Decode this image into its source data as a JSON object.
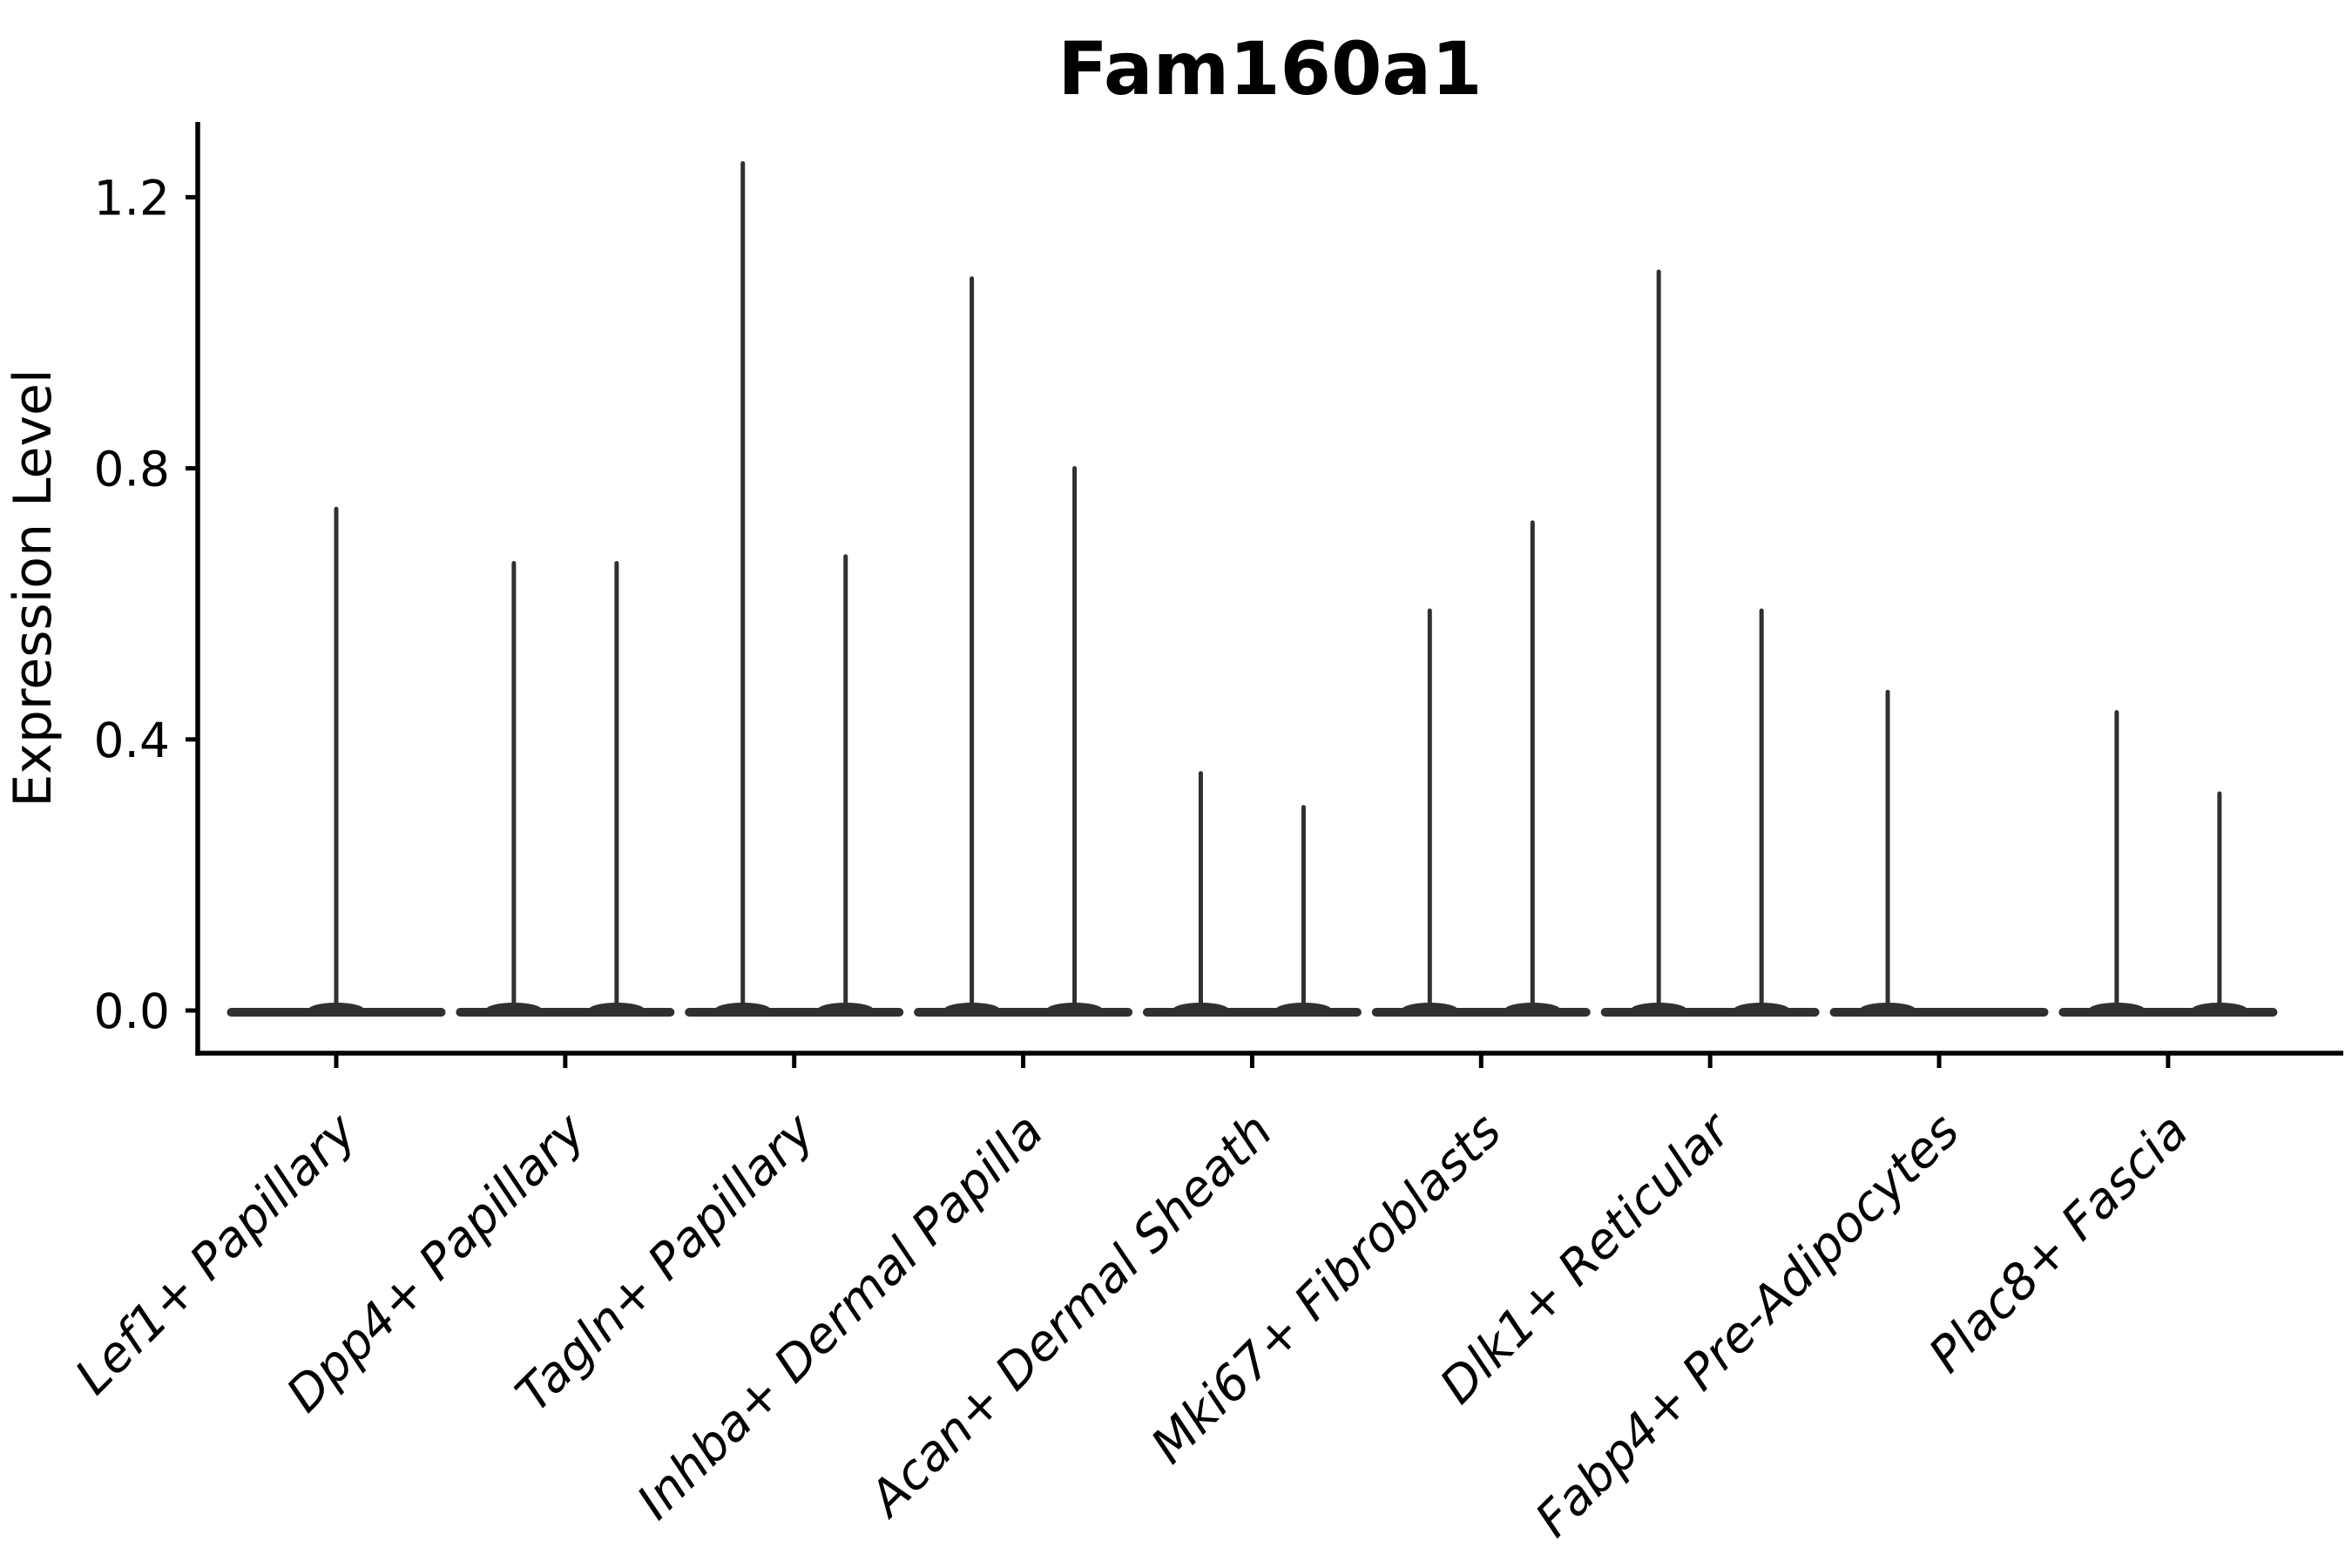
{
  "figure": {
    "title": "Fam160a1",
    "ylabel": "Expression Level"
  },
  "chart_data": {
    "type": "violin",
    "title": "Fam160a1",
    "xlabel": "",
    "ylabel": "Expression Level",
    "ylim": [
      -0.06,
      1.31
    ],
    "yticks": [
      "0.0",
      "0.4",
      "0.8",
      "1.2"
    ],
    "grid": false,
    "legend": "none",
    "line_color": "#303030",
    "axis_color": "#000000",
    "categories": [
      "Lef1+ Papillary",
      "Dpp4+ Papillary",
      "Tagln+ Papillary",
      "Inhba+ Dermal Papilla",
      "Acan+ Dermal Sheath",
      "Mki67+ Fibroblasts",
      "Dlk1+ Reticular",
      "Fabp4+ Pre-Adipocytes",
      "Plac8+ Fascia"
    ],
    "violins": [
      {
        "category": "Lef1+ Papillary",
        "spikes": [
          {
            "position": "center",
            "value": 0.74
          }
        ]
      },
      {
        "category": "Dpp4+ Papillary",
        "spikes": [
          {
            "position": "left",
            "value": 0.66
          },
          {
            "position": "right",
            "value": 0.66
          }
        ]
      },
      {
        "category": "Tagln+ Papillary",
        "spikes": [
          {
            "position": "left",
            "value": 1.25
          },
          {
            "position": "right",
            "value": 0.67
          }
        ]
      },
      {
        "category": "Inhba+ Dermal Papilla",
        "spikes": [
          {
            "position": "left",
            "value": 1.08
          },
          {
            "position": "right",
            "value": 0.8
          }
        ]
      },
      {
        "category": "Acan+ Dermal Sheath",
        "spikes": [
          {
            "position": "left",
            "value": 0.35
          },
          {
            "position": "right",
            "value": 0.3
          }
        ]
      },
      {
        "category": "Mki67+ Fibroblasts",
        "spikes": [
          {
            "position": "left",
            "value": 0.59
          },
          {
            "position": "right",
            "value": 0.72
          }
        ]
      },
      {
        "category": "Dlk1+ Reticular",
        "spikes": [
          {
            "position": "left",
            "value": 1.09
          },
          {
            "position": "right",
            "value": 0.59
          }
        ]
      },
      {
        "category": "Fabp4+ Pre-Adipocytes",
        "spikes": [
          {
            "position": "left",
            "value": 0.47
          }
        ]
      },
      {
        "category": "Plac8+ Fascia",
        "spikes": [
          {
            "position": "left",
            "value": 0.44
          },
          {
            "position": "right",
            "value": 0.32
          }
        ]
      }
    ]
  }
}
